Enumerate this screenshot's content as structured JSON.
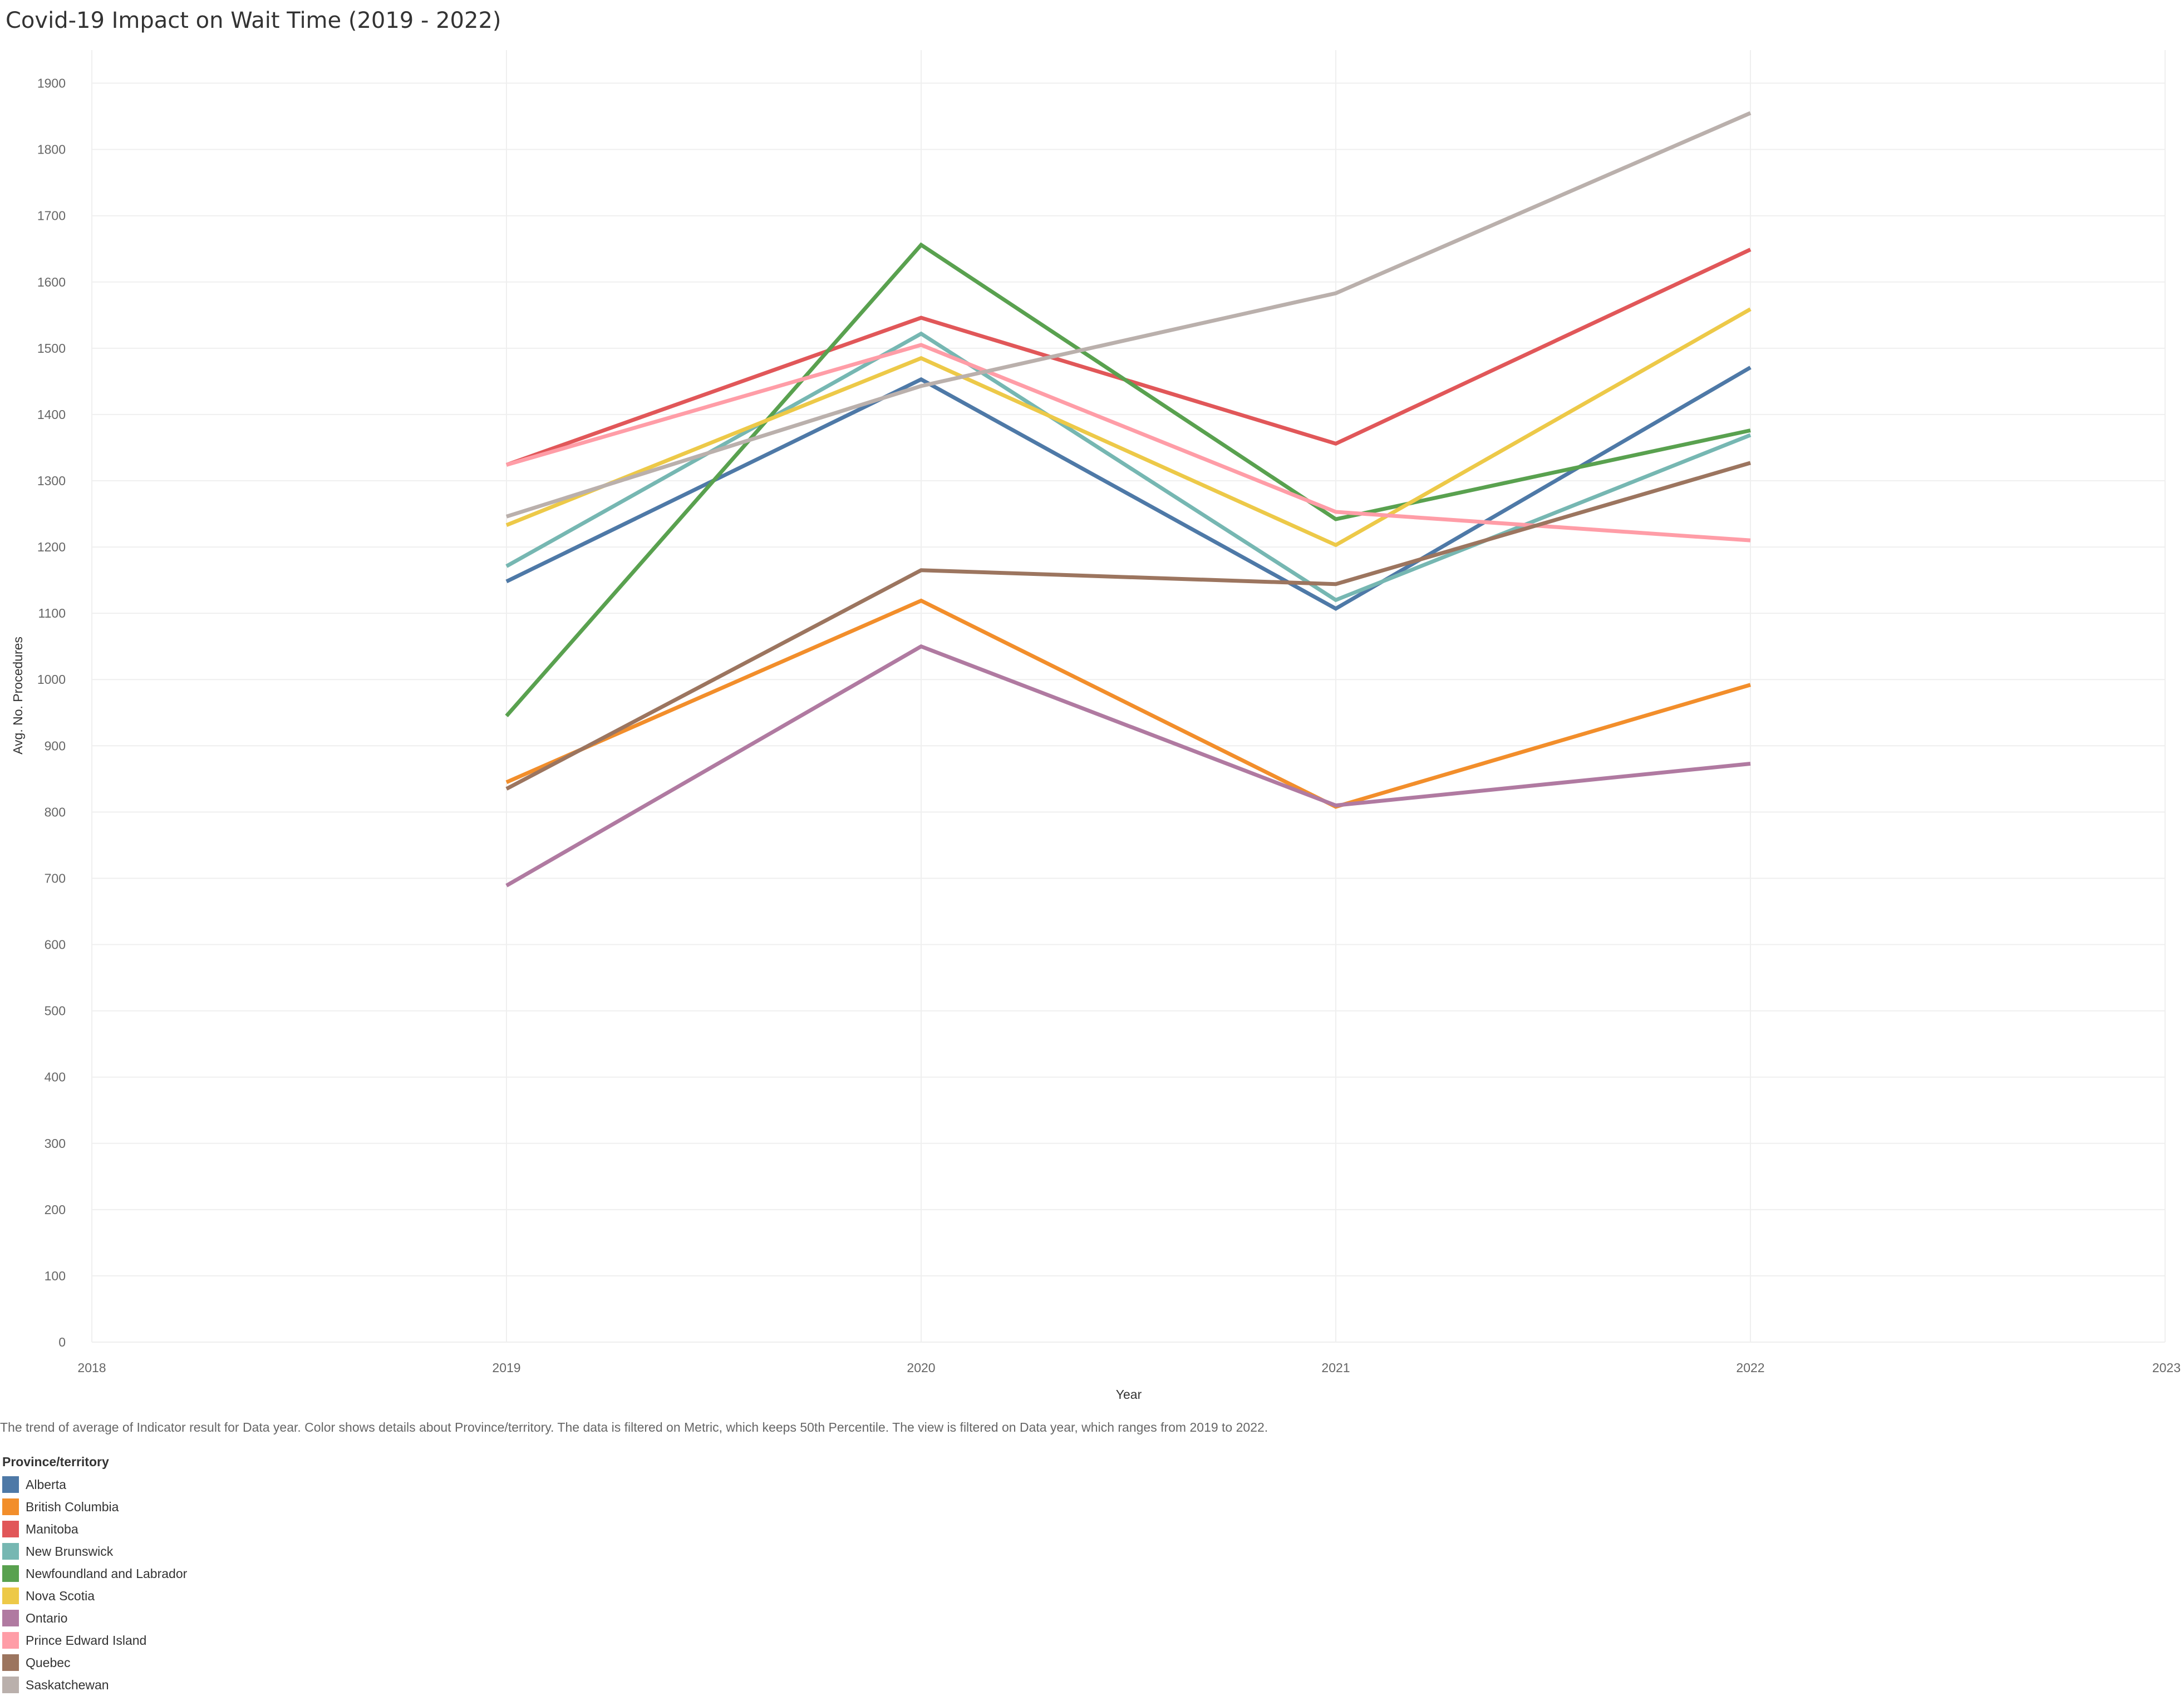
{
  "title": "Covid-19 Impact on Wait Time (2019 - 2022)",
  "caption": "The trend of average of Indicator result for Data year.  Color shows details about Province/territory. The data is filtered on Metric, which keeps 50th Percentile. The view is filtered on Data year, which ranges from 2019 to 2022.",
  "legend": {
    "title": "Province/territory"
  },
  "chart_data": {
    "type": "line",
    "xlabel": "Year",
    "ylabel": "Avg. No. Procedures",
    "xlim": [
      2018,
      2023
    ],
    "ylim": [
      0,
      1950
    ],
    "x_ticks": [
      2018,
      2019,
      2020,
      2021,
      2022,
      2023
    ],
    "y_ticks": [
      0,
      100,
      200,
      300,
      400,
      500,
      600,
      700,
      800,
      900,
      1000,
      1100,
      1200,
      1300,
      1400,
      1500,
      1600,
      1700,
      1800,
      1900
    ],
    "grid": true,
    "legend_position": "bottom-left",
    "x": [
      2019,
      2020,
      2021,
      2022
    ],
    "series": [
      {
        "name": "Alberta",
        "color": "#4e79a7",
        "values": [
          1148,
          1453,
          1107,
          1471
        ]
      },
      {
        "name": "British Columbia",
        "color": "#f28e2b",
        "values": [
          845,
          1119,
          808,
          992
        ]
      },
      {
        "name": "Manitoba",
        "color": "#e15759",
        "values": [
          1324,
          1546,
          1356,
          1649
        ]
      },
      {
        "name": "New Brunswick",
        "color": "#76b7b2",
        "values": [
          1171,
          1522,
          1120,
          1369
        ]
      },
      {
        "name": "Newfoundland and Labrador",
        "color": "#59a14f",
        "values": [
          945,
          1656,
          1242,
          1376
        ]
      },
      {
        "name": "Nova Scotia",
        "color": "#edc948",
        "values": [
          1233,
          1485,
          1203,
          1559
        ]
      },
      {
        "name": "Ontario",
        "color": "#b07aa1",
        "values": [
          689,
          1050,
          810,
          873
        ]
      },
      {
        "name": "Prince Edward Island",
        "color": "#ff9da7",
        "values": [
          1324,
          1505,
          1253,
          1210
        ]
      },
      {
        "name": "Quebec",
        "color": "#9c755f",
        "values": [
          835,
          1165,
          1144,
          1327
        ]
      },
      {
        "name": "Saskatchewan",
        "color": "#bab0ac",
        "values": [
          1246,
          1443,
          1583,
          1855
        ]
      }
    ]
  }
}
